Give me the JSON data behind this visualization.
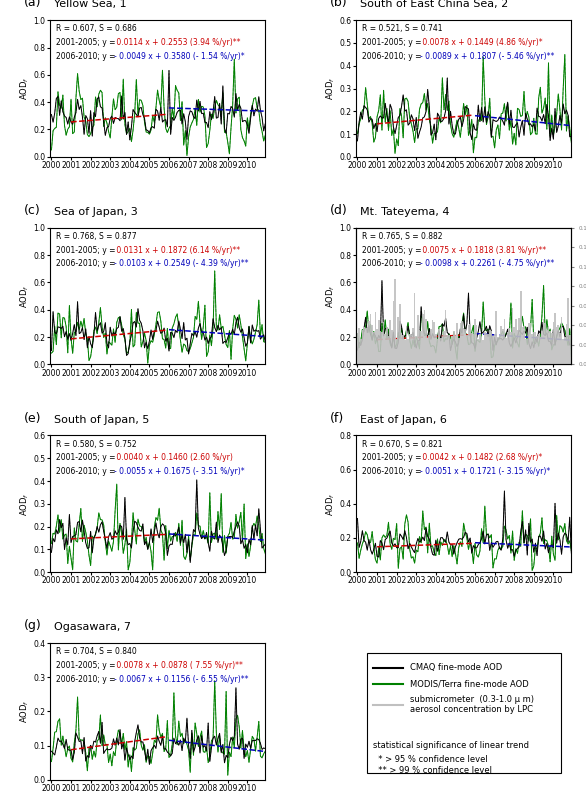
{
  "panels": [
    {
      "label": "(a)",
      "title": "Yellow Sea, 1",
      "R": 0.607,
      "S": 0.686,
      "prefix1": "2001-2005; y = ",
      "eq1_red": " 0.0114 x + 0.2553 (3.94 %/yr)",
      "sig1": "**",
      "prefix2": "2006-2010; y = ",
      "eq2_blue": "- 0.0049 x + 0.3580 (- 1.54 %/yr)",
      "sig2": "*",
      "slope1": 0.0114,
      "intercept1": 0.2553,
      "slope2": -0.0049,
      "intercept2": 0.358,
      "ylim": [
        0.0,
        1.0
      ],
      "yticks": [
        0.0,
        0.2,
        0.4,
        0.6,
        0.8,
        1.0
      ],
      "has_bar": false
    },
    {
      "label": "(b)",
      "title": "South of East China Sea, 2",
      "R": 0.521,
      "S": 0.741,
      "prefix1": "2001-2005; y = ",
      "eq1_red": " 0.0078 x + 0.1449 (4.86 %/yr)",
      "sig1": "*",
      "prefix2": "2006-2010; y = ",
      "eq2_blue": "- 0.0089 x + 0.1807 (- 5.46 %/yr)",
      "sig2": "**",
      "slope1": 0.0078,
      "intercept1": 0.1449,
      "slope2": -0.0089,
      "intercept2": 0.1807,
      "ylim": [
        0.0,
        0.6
      ],
      "yticks": [
        0.0,
        0.1,
        0.2,
        0.3,
        0.4,
        0.5,
        0.6
      ],
      "has_bar": false
    },
    {
      "label": "(c)",
      "title": "Sea of Japan, 3",
      "R": 0.768,
      "S": 0.877,
      "prefix1": "2001-2005; y = ",
      "eq1_red": " 0.0131 x + 0.1872 (6.14 %/yr)",
      "sig1": "**",
      "prefix2": "2006-2010; y = ",
      "eq2_blue": "- 0.0103 x + 0.2549 (- 4.39 %/yr)",
      "sig2": "**",
      "slope1": 0.0131,
      "intercept1": 0.1872,
      "slope2": -0.0103,
      "intercept2": 0.2549,
      "ylim": [
        0.0,
        1.0
      ],
      "yticks": [
        0.0,
        0.2,
        0.4,
        0.6,
        0.8,
        1.0
      ],
      "has_bar": false
    },
    {
      "label": "(d)",
      "title": "Mt. Tateyema, 4",
      "R": 0.765,
      "S": 0.882,
      "prefix1": "2001-2005; y = ",
      "eq1_red": " 0.0075 x + 0.1818 (3.81 %/yr)",
      "sig1": "**",
      "prefix2": "2006-2010; y = ",
      "eq2_blue": "- 0.0098 x + 0.2261 (- 4.75 %/yr)",
      "sig2": "**",
      "slope1": 0.0075,
      "intercept1": 0.1818,
      "slope2": -0.0098,
      "intercept2": 0.2261,
      "ylim": [
        0.0,
        1.0
      ],
      "yticks": [
        0.0,
        0.2,
        0.4,
        0.6,
        0.8,
        1.0
      ],
      "has_bar": true
    },
    {
      "label": "(e)",
      "title": "South of Japan, 5",
      "R": 0.58,
      "S": 0.752,
      "prefix1": "2001-2005; y = ",
      "eq1_red": " 0.0040 x + 0.1460 (2.60 %/yr)",
      "sig1": "",
      "prefix2": "2006-2010; y = ",
      "eq2_blue": "- 0.0055 x + 0.1675 (- 3.51 %/yr)",
      "sig2": "*",
      "slope1": 0.004,
      "intercept1": 0.146,
      "slope2": -0.0055,
      "intercept2": 0.1675,
      "ylim": [
        0.0,
        0.6
      ],
      "yticks": [
        0.0,
        0.1,
        0.2,
        0.3,
        0.4,
        0.5,
        0.6
      ],
      "has_bar": false
    },
    {
      "label": "(f)",
      "title": "East of Japan, 6",
      "R": 0.67,
      "S": 0.821,
      "prefix1": "2001-2005; y = ",
      "eq1_red": " 0.0042 x + 0.1482 (2.68 %/yr)",
      "sig1": "*",
      "prefix2": "2006-2010; y = ",
      "eq2_blue": "- 0.0051 x + 0.1721 (- 3.15 %/yr)",
      "sig2": "*",
      "slope1": 0.0042,
      "intercept1": 0.1482,
      "slope2": -0.0051,
      "intercept2": 0.1721,
      "ylim": [
        0.0,
        0.8
      ],
      "yticks": [
        0.0,
        0.2,
        0.4,
        0.6,
        0.8
      ],
      "has_bar": false
    },
    {
      "label": "(g)",
      "title": "Ogasawara, 7",
      "R": 0.704,
      "S": 0.84,
      "prefix1": "2001-2005; y = ",
      "eq1_red": " 0.0078 x + 0.0878 ( 7.55 %/yr)",
      "sig1": "**",
      "prefix2": "2006-2010; y = ",
      "eq2_blue": "- 0.0067 x + 0.1156 (- 6.55 %/yr)",
      "sig2": "**",
      "slope1": 0.0078,
      "intercept1": 0.0878,
      "slope2": -0.0067,
      "intercept2": 0.1156,
      "ylim": [
        0.0,
        0.4
      ],
      "yticks": [
        0.0,
        0.1,
        0.2,
        0.3,
        0.4
      ],
      "has_bar": false
    }
  ],
  "black_color": "#000000",
  "green_color": "#008000",
  "trend1_color": "#cc0000",
  "trend2_color": "#0000bb",
  "gray_bar_color": "#c0c0c0",
  "n_months": 132,
  "legend_lines": [
    {
      "color": "#000000",
      "label": "CMAQ fine-mode AOD"
    },
    {
      "color": "#008000",
      "label": "MODIS/Terra fine-mode AOD"
    },
    {
      "color": "#c0c0c0",
      "label": "submicrometer  (0.3-1.0 μ m)\naerosol concentration by LPC"
    }
  ],
  "sig_note": [
    "statistical significance of linear trend",
    "  * > 95 % confidence level",
    "  ** > 99 % confidence level"
  ]
}
